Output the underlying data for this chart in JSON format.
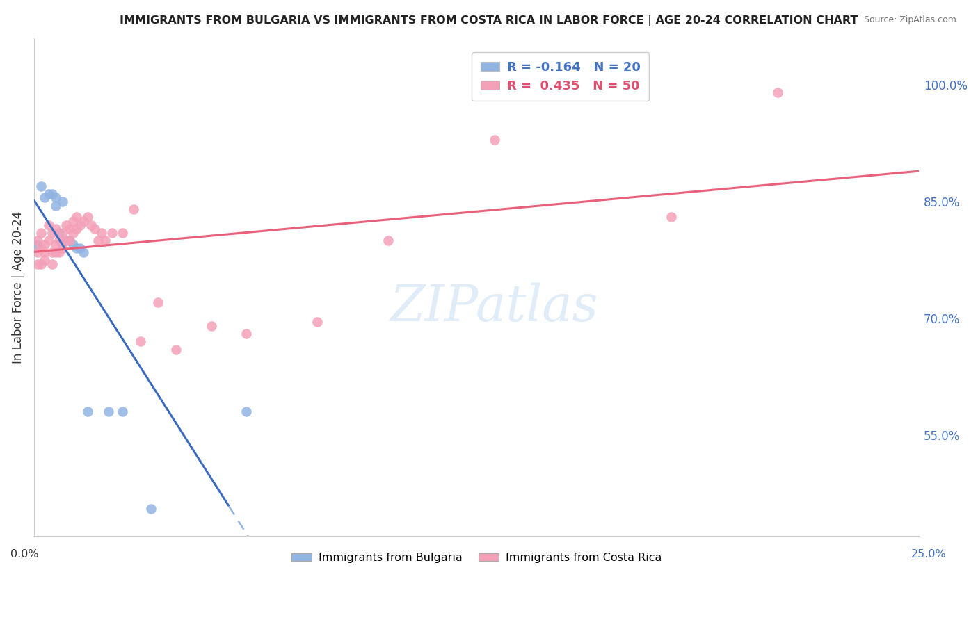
{
  "title": "IMMIGRANTS FROM BULGARIA VS IMMIGRANTS FROM COSTA RICA IN LABOR FORCE | AGE 20-24 CORRELATION CHART",
  "source": "Source: ZipAtlas.com",
  "ylabel": "In Labor Force | Age 20-24",
  "ylabel_tick_vals": [
    0.55,
    0.7,
    0.85,
    1.0
  ],
  "xmin": 0.0,
  "xmax": 0.25,
  "ymin": 0.42,
  "ymax": 1.06,
  "bulgaria_color": "#92b4e3",
  "bulgaria_line_color": "#3b6bbf",
  "bulgaria_dash_color": "#92b4e3",
  "costa_rica_color": "#f4a0b8",
  "costa_rica_line_color": "#e8607a",
  "bulgaria_R": -0.164,
  "bulgaria_N": 20,
  "costa_rica_R": 0.435,
  "costa_rica_N": 50,
  "watermark": "ZIPatlas",
  "bg_color": "#ffffff",
  "grid_color": "#d0d0d0",
  "right_tick_color": "#4472c4",
  "bulgaria_x": [
    0.001,
    0.002,
    0.003,
    0.004,
    0.005,
    0.006,
    0.006,
    0.007,
    0.008,
    0.009,
    0.01,
    0.011,
    0.012,
    0.013,
    0.014,
    0.015,
    0.021,
    0.025,
    0.033,
    0.06
  ],
  "bulgaria_y": [
    0.795,
    0.87,
    0.855,
    0.86,
    0.86,
    0.855,
    0.845,
    0.81,
    0.85,
    0.8,
    0.8,
    0.795,
    0.79,
    0.79,
    0.785,
    0.58,
    0.58,
    0.58,
    0.455,
    0.58
  ],
  "costa_rica_x": [
    0.001,
    0.001,
    0.001,
    0.002,
    0.002,
    0.002,
    0.003,
    0.003,
    0.003,
    0.004,
    0.004,
    0.005,
    0.005,
    0.005,
    0.006,
    0.006,
    0.006,
    0.007,
    0.007,
    0.008,
    0.008,
    0.009,
    0.009,
    0.01,
    0.01,
    0.011,
    0.011,
    0.012,
    0.012,
    0.013,
    0.014,
    0.015,
    0.016,
    0.017,
    0.018,
    0.019,
    0.02,
    0.022,
    0.025,
    0.028,
    0.03,
    0.035,
    0.04,
    0.05,
    0.06,
    0.08,
    0.1,
    0.13,
    0.18,
    0.21
  ],
  "costa_rica_y": [
    0.77,
    0.785,
    0.8,
    0.77,
    0.79,
    0.81,
    0.775,
    0.785,
    0.795,
    0.8,
    0.82,
    0.77,
    0.785,
    0.81,
    0.785,
    0.795,
    0.815,
    0.785,
    0.8,
    0.79,
    0.81,
    0.8,
    0.82,
    0.8,
    0.815,
    0.81,
    0.825,
    0.815,
    0.83,
    0.82,
    0.825,
    0.83,
    0.82,
    0.815,
    0.8,
    0.81,
    0.8,
    0.81,
    0.81,
    0.84,
    0.67,
    0.72,
    0.66,
    0.69,
    0.68,
    0.695,
    0.8,
    0.93,
    0.83,
    0.99
  ],
  "solid_line_end_x": 0.055,
  "dash_line_start_x": 0.055
}
